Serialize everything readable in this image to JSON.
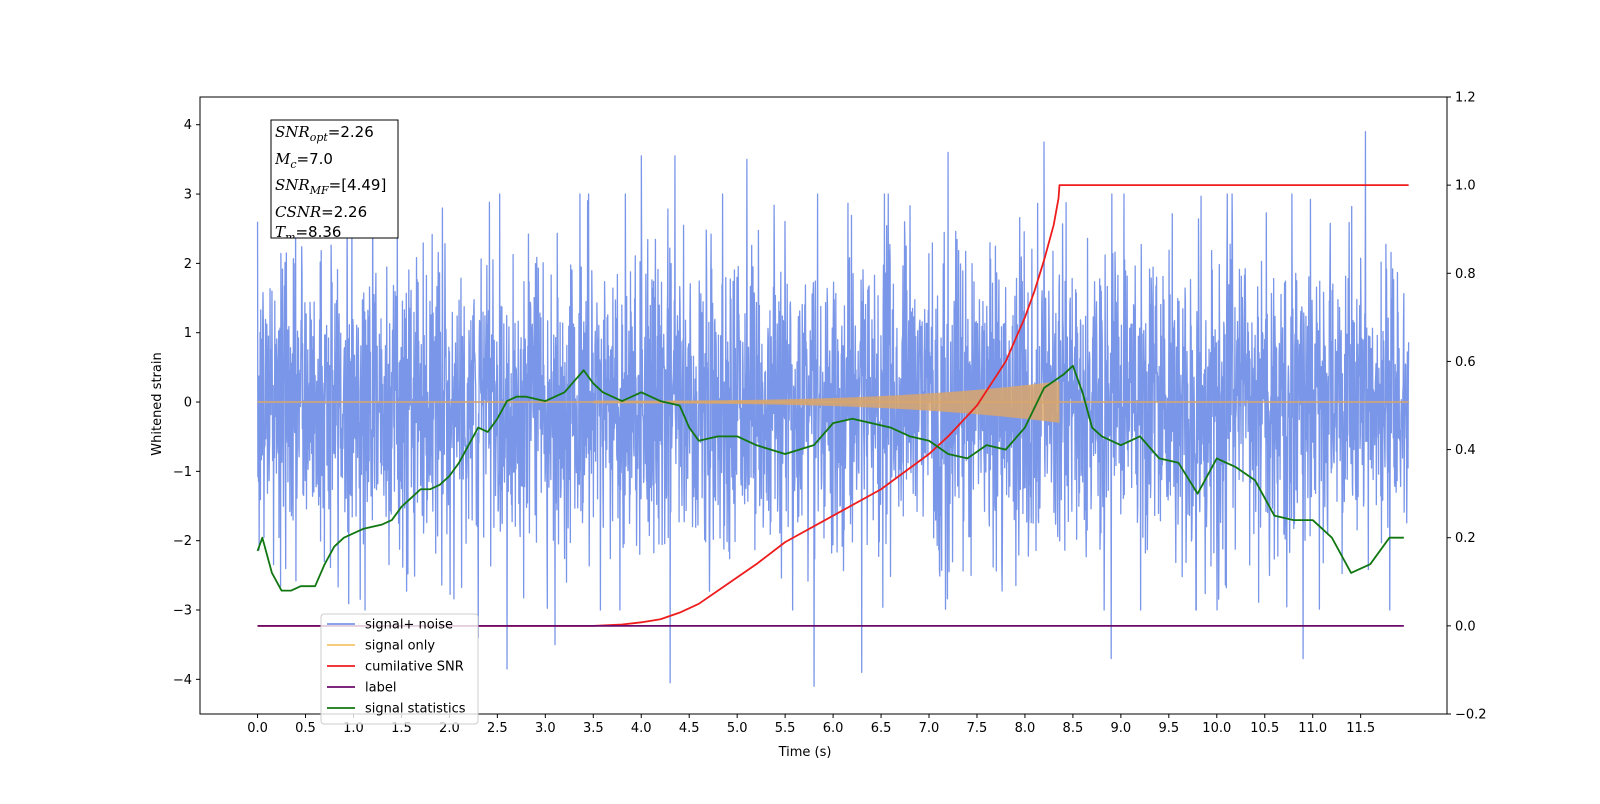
{
  "chart_data": {
    "type": "line",
    "xlabel": "Time (s)",
    "ylabel_left": "Whitened strain",
    "xlim": [
      -0.6,
      12.4
    ],
    "ylim_left": [
      -4.5,
      4.4
    ],
    "ylim_right": [
      -0.2,
      1.2
    ],
    "x_ticks": [
      "0.0",
      "0.5",
      "1.0",
      "1.5",
      "2.0",
      "2.5",
      "3.0",
      "3.5",
      "4.0",
      "4.5",
      "5.0",
      "5.5",
      "6.0",
      "6.5",
      "7.0",
      "7.5",
      "8.0",
      "8.5",
      "9.0",
      "9.5",
      "10.0",
      "10.5",
      "11.0",
      "11.5"
    ],
    "y_ticks_left": [
      "4",
      "3",
      "2",
      "1",
      "0",
      "−1",
      "−2",
      "−3",
      "−4"
    ],
    "y_ticks_right": [
      "1.2",
      "1.0",
      "0.8",
      "0.6",
      "0.4",
      "0.2",
      "0.0",
      "−0.2"
    ],
    "grid": false,
    "legend_position": "bottom-left",
    "annotation": {
      "snr_opt": "2.26",
      "mc": "7.0",
      "snr_mf": "[4.49]",
      "csnr": "2.26",
      "tm": "8.36"
    },
    "series": [
      {
        "name": "signal+ noise",
        "axis": "left",
        "color": "#7a96e8",
        "style": "noise",
        "x_range": [
          0.0,
          12.0
        ],
        "noise_amplitude": 1.1,
        "peaks": [
          [
            0.0,
            2.6
          ],
          [
            1.2,
            3.6
          ],
          [
            2.3,
            -3.4
          ],
          [
            2.6,
            -3.85
          ],
          [
            3.1,
            -3.5
          ],
          [
            4.0,
            3.55
          ],
          [
            4.3,
            -4.05
          ],
          [
            4.35,
            3.55
          ],
          [
            5.1,
            3.5
          ],
          [
            5.8,
            -4.1
          ],
          [
            6.3,
            -3.9
          ],
          [
            7.2,
            3.6
          ],
          [
            8.2,
            3.75
          ],
          [
            8.9,
            -3.7
          ],
          [
            10.9,
            -3.7
          ],
          [
            11.55,
            3.9
          ]
        ]
      },
      {
        "name": "signal only",
        "axis": "left",
        "color": "#d9a66b",
        "style": "chirp",
        "x_range": [
          0.0,
          12.0
        ],
        "merger_time": 8.36
      },
      {
        "name": "cumilative SNR",
        "axis": "right",
        "color": "#ee1c1c",
        "x": [
          0.0,
          3.5,
          3.8,
          4.0,
          4.2,
          4.4,
          4.6,
          4.8,
          5.0,
          5.2,
          5.5,
          6.0,
          6.5,
          7.0,
          7.2,
          7.5,
          7.8,
          8.0,
          8.1,
          8.2,
          8.3,
          8.35,
          8.36,
          12.0
        ],
        "values": [
          0.0,
          0.0,
          0.003,
          0.008,
          0.015,
          0.03,
          0.05,
          0.08,
          0.11,
          0.14,
          0.19,
          0.25,
          0.31,
          0.39,
          0.43,
          0.5,
          0.6,
          0.7,
          0.76,
          0.83,
          0.91,
          0.97,
          1.0,
          1.0
        ]
      },
      {
        "name": "label",
        "axis": "right",
        "color": "#6b0a6b",
        "x": [
          0.0,
          11.95
        ],
        "values": [
          0.0,
          0.0
        ]
      },
      {
        "name": "signal statistics",
        "axis": "right",
        "color": "#117711",
        "x": [
          0.0,
          0.05,
          0.15,
          0.25,
          0.35,
          0.45,
          0.6,
          0.7,
          0.8,
          0.9,
          1.0,
          1.1,
          1.3,
          1.4,
          1.5,
          1.6,
          1.7,
          1.8,
          1.9,
          2.0,
          2.1,
          2.2,
          2.3,
          2.4,
          2.5,
          2.6,
          2.7,
          2.8,
          3.0,
          3.2,
          3.4,
          3.5,
          3.6,
          3.8,
          4.0,
          4.2,
          4.4,
          4.5,
          4.6,
          4.8,
          5.0,
          5.2,
          5.5,
          5.8,
          6.0,
          6.2,
          6.4,
          6.6,
          6.8,
          7.0,
          7.2,
          7.4,
          7.6,
          7.8,
          8.0,
          8.2,
          8.4,
          8.5,
          8.6,
          8.7,
          8.8,
          9.0,
          9.2,
          9.4,
          9.6,
          9.8,
          10.0,
          10.2,
          10.4,
          10.6,
          10.8,
          11.0,
          11.2,
          11.4,
          11.6,
          11.8,
          11.95
        ],
        "values": [
          0.17,
          0.2,
          0.12,
          0.08,
          0.08,
          0.09,
          0.09,
          0.14,
          0.18,
          0.2,
          0.21,
          0.22,
          0.23,
          0.24,
          0.27,
          0.29,
          0.31,
          0.31,
          0.32,
          0.34,
          0.37,
          0.41,
          0.45,
          0.44,
          0.47,
          0.51,
          0.52,
          0.52,
          0.51,
          0.53,
          0.58,
          0.55,
          0.53,
          0.51,
          0.53,
          0.51,
          0.5,
          0.45,
          0.42,
          0.43,
          0.43,
          0.41,
          0.39,
          0.41,
          0.46,
          0.47,
          0.46,
          0.45,
          0.43,
          0.42,
          0.39,
          0.38,
          0.41,
          0.4,
          0.45,
          0.54,
          0.57,
          0.59,
          0.53,
          0.45,
          0.43,
          0.41,
          0.43,
          0.38,
          0.37,
          0.3,
          0.38,
          0.36,
          0.33,
          0.25,
          0.24,
          0.24,
          0.2,
          0.12,
          0.14,
          0.2,
          0.2
        ]
      }
    ]
  }
}
